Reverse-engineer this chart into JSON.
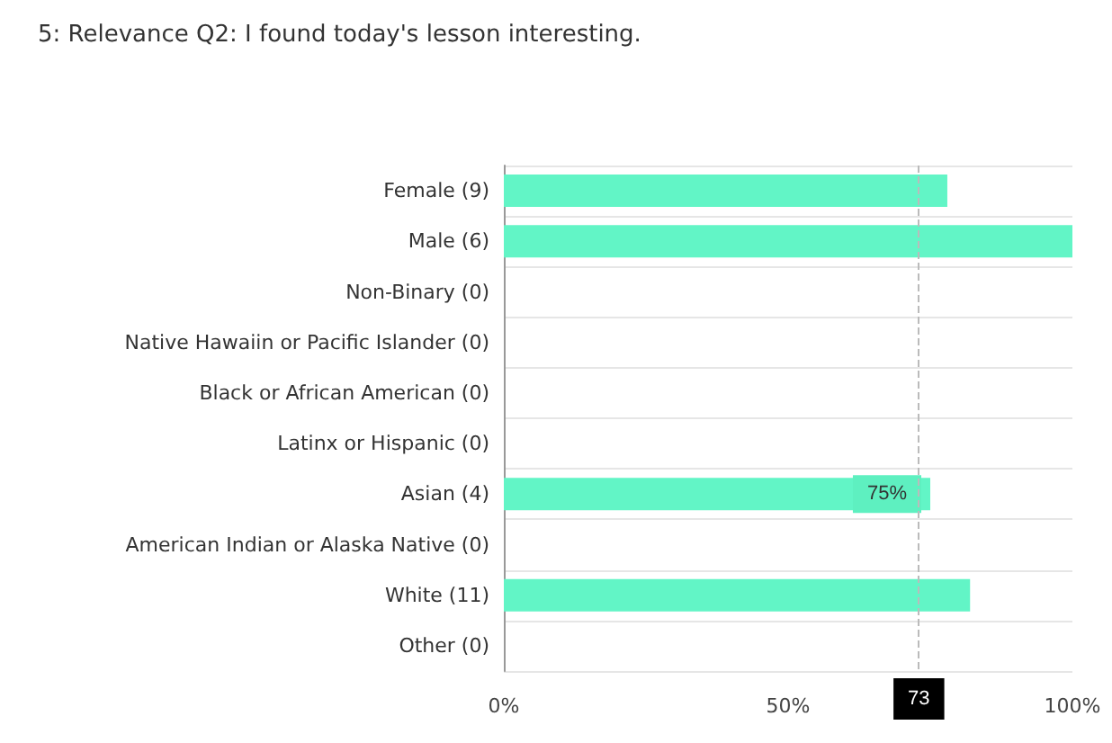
{
  "chart_data": {
    "type": "bar",
    "orientation": "horizontal",
    "title": "5: Relevance Q2: I found today's lesson interesting.",
    "categories": [
      "Female (9)",
      "Male (6)",
      "Non-Binary (0)",
      "Native Hawaiin or Pacific Islander (0)",
      "Black or African American (0)",
      "Latinx or Hispanic (0)",
      "Asian (4)",
      "American Indian or Alaska Native (0)",
      "White (11)",
      "Other (0)"
    ],
    "values": [
      78,
      100,
      0,
      0,
      0,
      0,
      75,
      0,
      82,
      0
    ],
    "value_labels": [
      null,
      null,
      null,
      null,
      null,
      null,
      "75%",
      null,
      null,
      null
    ],
    "color": "#62f5c6",
    "xlim": [
      0,
      100
    ],
    "xticks": [
      {
        "value": 0,
        "label": "0%"
      },
      {
        "value": 50,
        "label": "50%"
      },
      {
        "value": 100,
        "label": "100%"
      }
    ],
    "ref_lines": [
      {
        "axis": "x",
        "value": 73,
        "label": "73",
        "line_style": "dashed",
        "color": "#bbbbbb"
      }
    ],
    "grid": "y"
  }
}
